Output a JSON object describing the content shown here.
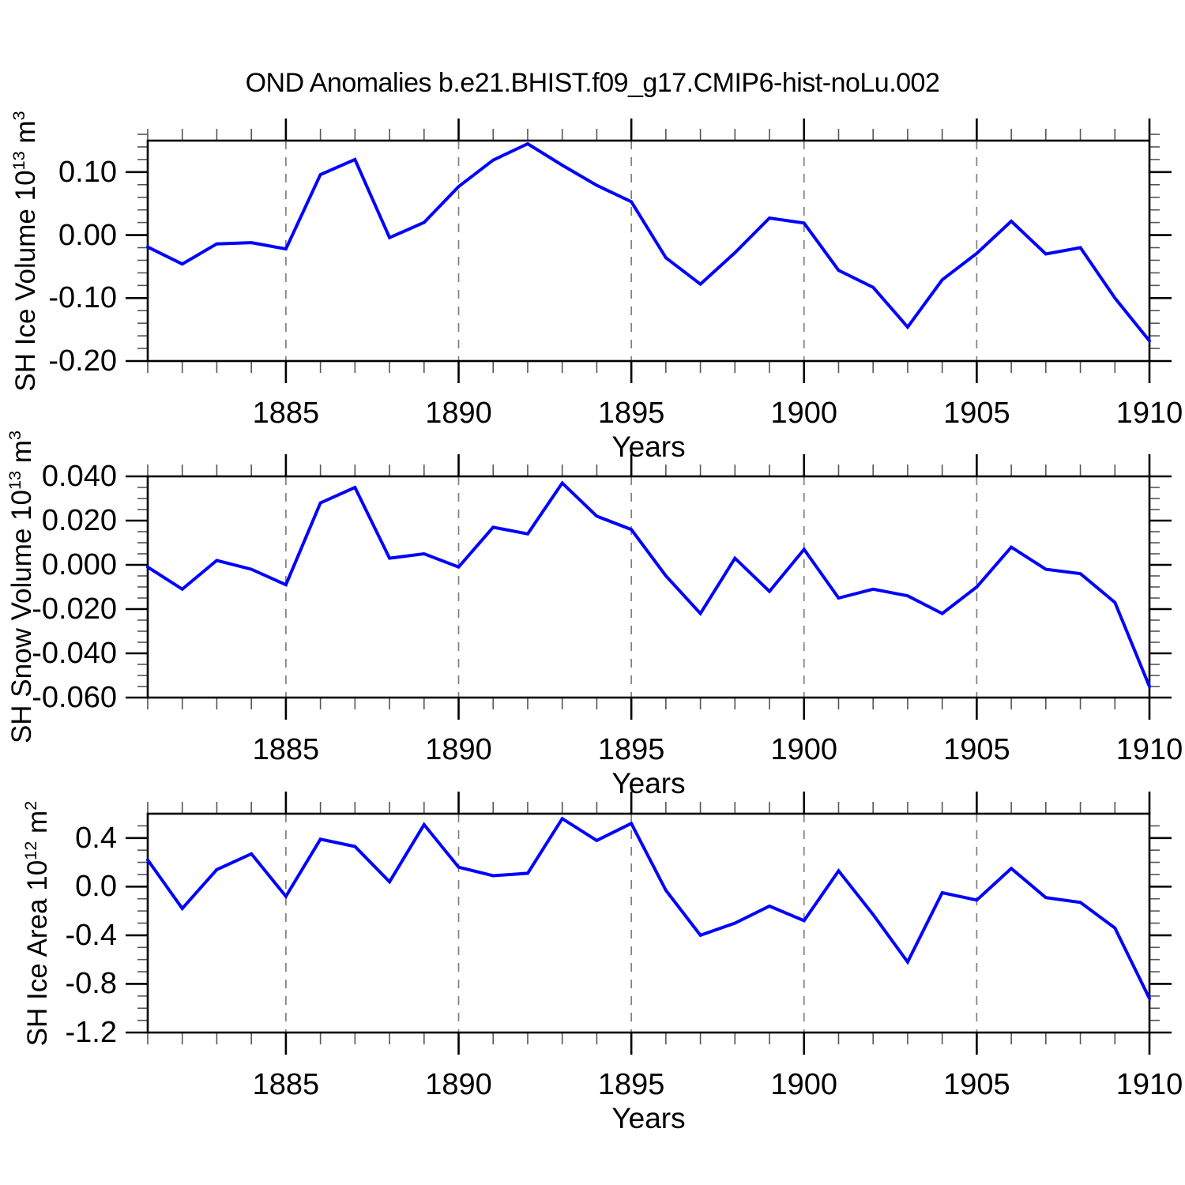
{
  "figure": {
    "title": "OND Anomalies b.e21.BHIST.f09_g17.CMIP6-hist-noLu.002",
    "background": "#ffffff",
    "colors": {
      "line": "#0000ff",
      "grid": "#808080",
      "axis": "#000000",
      "minor_tick": "#555555"
    }
  },
  "chart_data": [
    {
      "type": "line",
      "name": "sh-ice-volume",
      "ylabel": "SH Ice Volume 10^13 m^3",
      "ylabel_parts": [
        "SH Ice Volume 10",
        "13",
        " m",
        "3"
      ],
      "xlabel": "Years",
      "xlim": [
        1881,
        1910
      ],
      "ylim": [
        -0.2,
        0.15
      ],
      "xticks_major": [
        1885,
        1890,
        1895,
        1900,
        1905,
        1910
      ],
      "xtick_labels": [
        "1885",
        "1890",
        "1895",
        "1900",
        "1905",
        "1910"
      ],
      "xminor_step": 1,
      "grid_lines_x": [
        1885,
        1890,
        1895,
        1900,
        1905
      ],
      "grid": "vertical-dashed",
      "legend": "none",
      "yticks_major": [
        0.1,
        0.0,
        -0.1,
        -0.2
      ],
      "ytick_labels": [
        "0.10",
        "0.00",
        "-0.10",
        "-0.20"
      ],
      "yminor_step": 0.02,
      "x": [
        1881,
        1882,
        1883,
        1884,
        1885,
        1886,
        1887,
        1888,
        1889,
        1890,
        1891,
        1892,
        1893,
        1894,
        1895,
        1896,
        1897,
        1898,
        1899,
        1900,
        1901,
        1902,
        1903,
        1904,
        1905,
        1906,
        1907,
        1908,
        1909,
        1910
      ],
      "values": [
        -0.019,
        -0.046,
        -0.014,
        -0.012,
        -0.022,
        0.096,
        0.12,
        -0.004,
        0.02,
        0.077,
        0.119,
        0.145,
        0.111,
        0.079,
        0.053,
        -0.036,
        -0.078,
        -0.028,
        0.027,
        0.019,
        -0.056,
        -0.083,
        -0.146,
        -0.071,
        -0.029,
        0.022,
        -0.03,
        -0.02,
        -0.1,
        -0.168
      ]
    },
    {
      "type": "line",
      "name": "sh-snow-volume",
      "ylabel": "SH Snow Volume 10^13 m^3",
      "ylabel_parts": [
        "SH Snow Volume 10",
        "13",
        " m",
        "3"
      ],
      "xlabel": "Years",
      "xlim": [
        1881,
        1910
      ],
      "ylim": [
        -0.06,
        0.04
      ],
      "xticks_major": [
        1885,
        1890,
        1895,
        1900,
        1905,
        1910
      ],
      "xtick_labels": [
        "1885",
        "1890",
        "1895",
        "1900",
        "1905",
        "1910"
      ],
      "xminor_step": 1,
      "grid_lines_x": [
        1885,
        1890,
        1895,
        1900,
        1905
      ],
      "grid": "vertical-dashed",
      "legend": "none",
      "yticks_major": [
        0.04,
        0.02,
        0.0,
        -0.02,
        -0.04,
        -0.06
      ],
      "ytick_labels": [
        "0.040",
        "0.020",
        "0.000",
        "-0.020",
        "-0.040",
        "-0.060"
      ],
      "yminor_step": 0.005,
      "x": [
        1881,
        1882,
        1883,
        1884,
        1885,
        1886,
        1887,
        1888,
        1889,
        1890,
        1891,
        1892,
        1893,
        1894,
        1895,
        1896,
        1897,
        1898,
        1899,
        1900,
        1901,
        1902,
        1903,
        1904,
        1905,
        1906,
        1907,
        1908,
        1909,
        1910
      ],
      "values": [
        -0.001,
        -0.011,
        0.002,
        -0.002,
        -0.009,
        0.028,
        0.035,
        0.003,
        0.005,
        -0.001,
        0.017,
        0.014,
        0.037,
        0.022,
        0.016,
        -0.005,
        -0.022,
        0.003,
        -0.012,
        0.007,
        -0.015,
        -0.011,
        -0.014,
        -0.022,
        -0.01,
        0.008,
        -0.002,
        -0.004,
        -0.017,
        -0.055
      ]
    },
    {
      "type": "line",
      "name": "sh-ice-area",
      "ylabel": "SH Ice Area 10^12 m^2",
      "ylabel_parts": [
        "SH Ice Area 10",
        "12",
        " m",
        "2"
      ],
      "xlabel": "Years",
      "xlim": [
        1881,
        1910
      ],
      "ylim": [
        -1.2,
        0.6
      ],
      "xticks_major": [
        1885,
        1890,
        1895,
        1900,
        1905,
        1910
      ],
      "xtick_labels": [
        "1885",
        "1890",
        "1895",
        "1900",
        "1905",
        "1910"
      ],
      "xminor_step": 1,
      "grid_lines_x": [
        1885,
        1890,
        1895,
        1900,
        1905
      ],
      "grid": "vertical-dashed",
      "legend": "none",
      "yticks_major": [
        0.4,
        0.0,
        -0.4,
        -0.8,
        -1.2
      ],
      "ytick_labels": [
        "0.4",
        "0.0",
        "-0.4",
        "-0.8",
        "-1.2"
      ],
      "yminor_step": 0.1,
      "x": [
        1881,
        1882,
        1883,
        1884,
        1885,
        1886,
        1887,
        1888,
        1889,
        1890,
        1891,
        1892,
        1893,
        1894,
        1895,
        1896,
        1897,
        1898,
        1899,
        1900,
        1901,
        1902,
        1903,
        1904,
        1905,
        1906,
        1907,
        1908,
        1909,
        1910
      ],
      "values": [
        0.22,
        -0.18,
        0.14,
        0.27,
        -0.08,
        0.39,
        0.33,
        0.04,
        0.51,
        0.16,
        0.09,
        0.11,
        0.56,
        0.38,
        0.52,
        -0.03,
        -0.4,
        -0.3,
        -0.16,
        -0.28,
        0.13,
        -0.23,
        -0.62,
        -0.05,
        -0.11,
        0.15,
        -0.09,
        -0.13,
        -0.34,
        -0.92
      ]
    }
  ]
}
